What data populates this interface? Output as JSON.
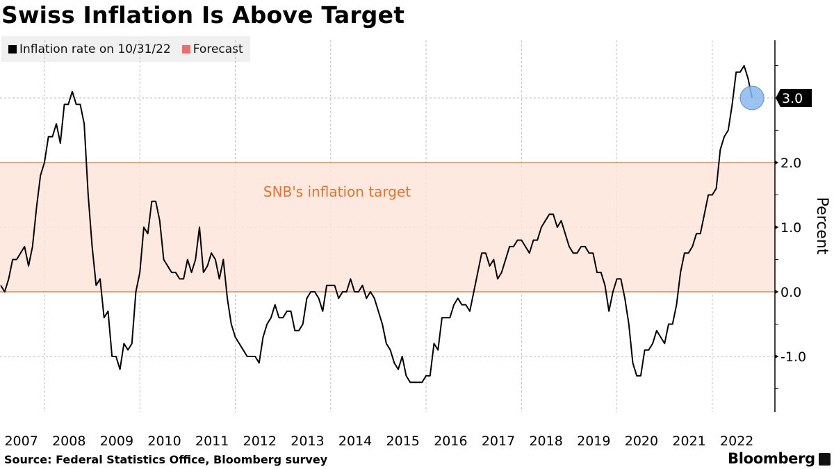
{
  "title": "Swiss Inflation Is Above Target",
  "legend": [
    {
      "label": "Inflation rate on 10/31/22",
      "color": "#000000"
    },
    {
      "label": "Forecast",
      "color": "#f26b6b"
    }
  ],
  "source": "Source: Federal Statistics Office, Bloomberg survey",
  "brand": "Bloomberg",
  "chart_data": {
    "type": "line",
    "title": "Swiss Inflation Is Above Target",
    "ylabel": "Percent",
    "xlabel": "",
    "x_start": "2007-01",
    "x_end": "2022-10",
    "x_frequency": "monthly",
    "x_ticks": [
      "2007",
      "2008",
      "2009",
      "2010",
      "2011",
      "2012",
      "2013",
      "2014",
      "2015",
      "2016",
      "2017",
      "2018",
      "2019",
      "2020",
      "2021",
      "2022"
    ],
    "y_ticks": [
      "-1.0",
      "0.0",
      "1.0",
      "2.0"
    ],
    "ylim": [
      -1.9,
      3.9
    ],
    "grid": true,
    "y_axis_side": "right",
    "band": {
      "label": "SNB's inflation target",
      "from": 0.0,
      "to": 2.0,
      "fill": "#fde5d9",
      "edge": "#d9773a",
      "text_color": "#e8742a"
    },
    "last_value_label": "3.0",
    "last_value_marker_color": "#8ab8ee",
    "series": [
      {
        "name": "Inflation rate on 10/31/22",
        "color": "#000000",
        "values": [
          0.1,
          0.0,
          0.2,
          0.5,
          0.5,
          0.6,
          0.7,
          0.4,
          0.7,
          1.3,
          1.8,
          2.0,
          2.4,
          2.4,
          2.6,
          2.3,
          2.9,
          2.9,
          3.1,
          2.9,
          2.9,
          2.6,
          1.5,
          0.7,
          0.1,
          0.2,
          -0.4,
          -0.3,
          -1.0,
          -1.0,
          -1.2,
          -0.8,
          -0.9,
          -0.8,
          0.0,
          0.3,
          1.0,
          0.9,
          1.4,
          1.4,
          1.1,
          0.5,
          0.4,
          0.3,
          0.3,
          0.2,
          0.2,
          0.5,
          0.3,
          0.5,
          1.0,
          0.3,
          0.4,
          0.6,
          0.5,
          0.2,
          0.5,
          -0.1,
          -0.5,
          -0.7,
          -0.8,
          -0.9,
          -1.0,
          -1.0,
          -1.0,
          -1.1,
          -0.7,
          -0.5,
          -0.4,
          -0.2,
          -0.4,
          -0.4,
          -0.3,
          -0.3,
          -0.6,
          -0.6,
          -0.5,
          -0.1,
          0.0,
          0.0,
          -0.1,
          -0.3,
          0.1,
          0.1,
          0.1,
          -0.1,
          0.0,
          0.0,
          0.2,
          0.0,
          0.0,
          0.1,
          -0.1,
          0.0,
          -0.1,
          -0.3,
          -0.5,
          -0.8,
          -0.9,
          -1.1,
          -1.2,
          -1.0,
          -1.3,
          -1.4,
          -1.4,
          -1.4,
          -1.4,
          -1.3,
          -1.3,
          -0.8,
          -0.9,
          -0.4,
          -0.4,
          -0.4,
          -0.2,
          -0.1,
          -0.2,
          -0.2,
          -0.3,
          0.0,
          0.3,
          0.6,
          0.6,
          0.4,
          0.5,
          0.2,
          0.3,
          0.5,
          0.7,
          0.7,
          0.8,
          0.8,
          0.7,
          0.6,
          0.8,
          0.8,
          1.0,
          1.1,
          1.2,
          1.2,
          1.0,
          1.1,
          0.9,
          0.7,
          0.6,
          0.6,
          0.7,
          0.7,
          0.6,
          0.6,
          0.3,
          0.3,
          0.1,
          -0.3,
          0.0,
          0.2,
          0.2,
          -0.1,
          -0.5,
          -1.1,
          -1.3,
          -1.3,
          -0.9,
          -0.9,
          -0.8,
          -0.6,
          -0.7,
          -0.8,
          -0.5,
          -0.5,
          -0.2,
          0.3,
          0.6,
          0.6,
          0.7,
          0.9,
          0.9,
          1.2,
          1.5,
          1.5,
          1.6,
          2.2,
          2.4,
          2.5,
          2.9,
          3.4,
          3.4,
          3.5,
          3.3,
          3.0
        ]
      }
    ]
  }
}
